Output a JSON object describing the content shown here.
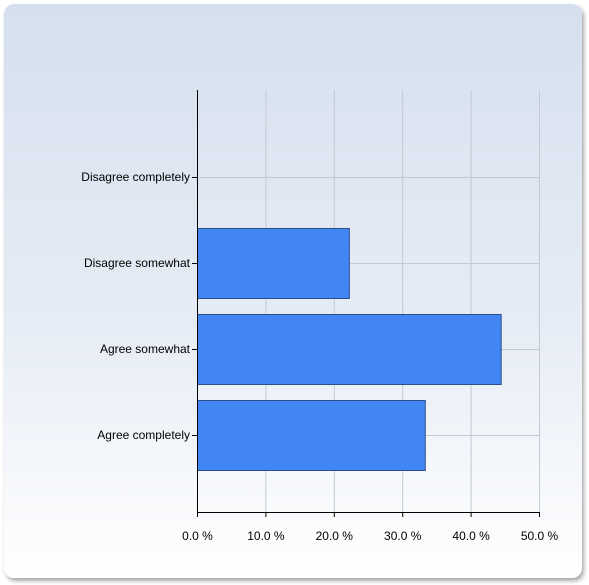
{
  "chart_data": {
    "type": "bar",
    "orientation": "horizontal",
    "categories": [
      "Disagree completely",
      "Disagree somewhat",
      "Agree somewhat",
      "Agree completely"
    ],
    "values": [
      0.0,
      22.2,
      44.4,
      33.3
    ],
    "xlim": [
      0,
      50
    ],
    "xticks": [
      "0.0 %",
      "10.0 %",
      "20.0 %",
      "30.0 %",
      "40.0 %",
      "50.0 %"
    ],
    "grid": true,
    "bar_color": "#4286f4",
    "title": "",
    "xlabel": "",
    "ylabel": ""
  }
}
